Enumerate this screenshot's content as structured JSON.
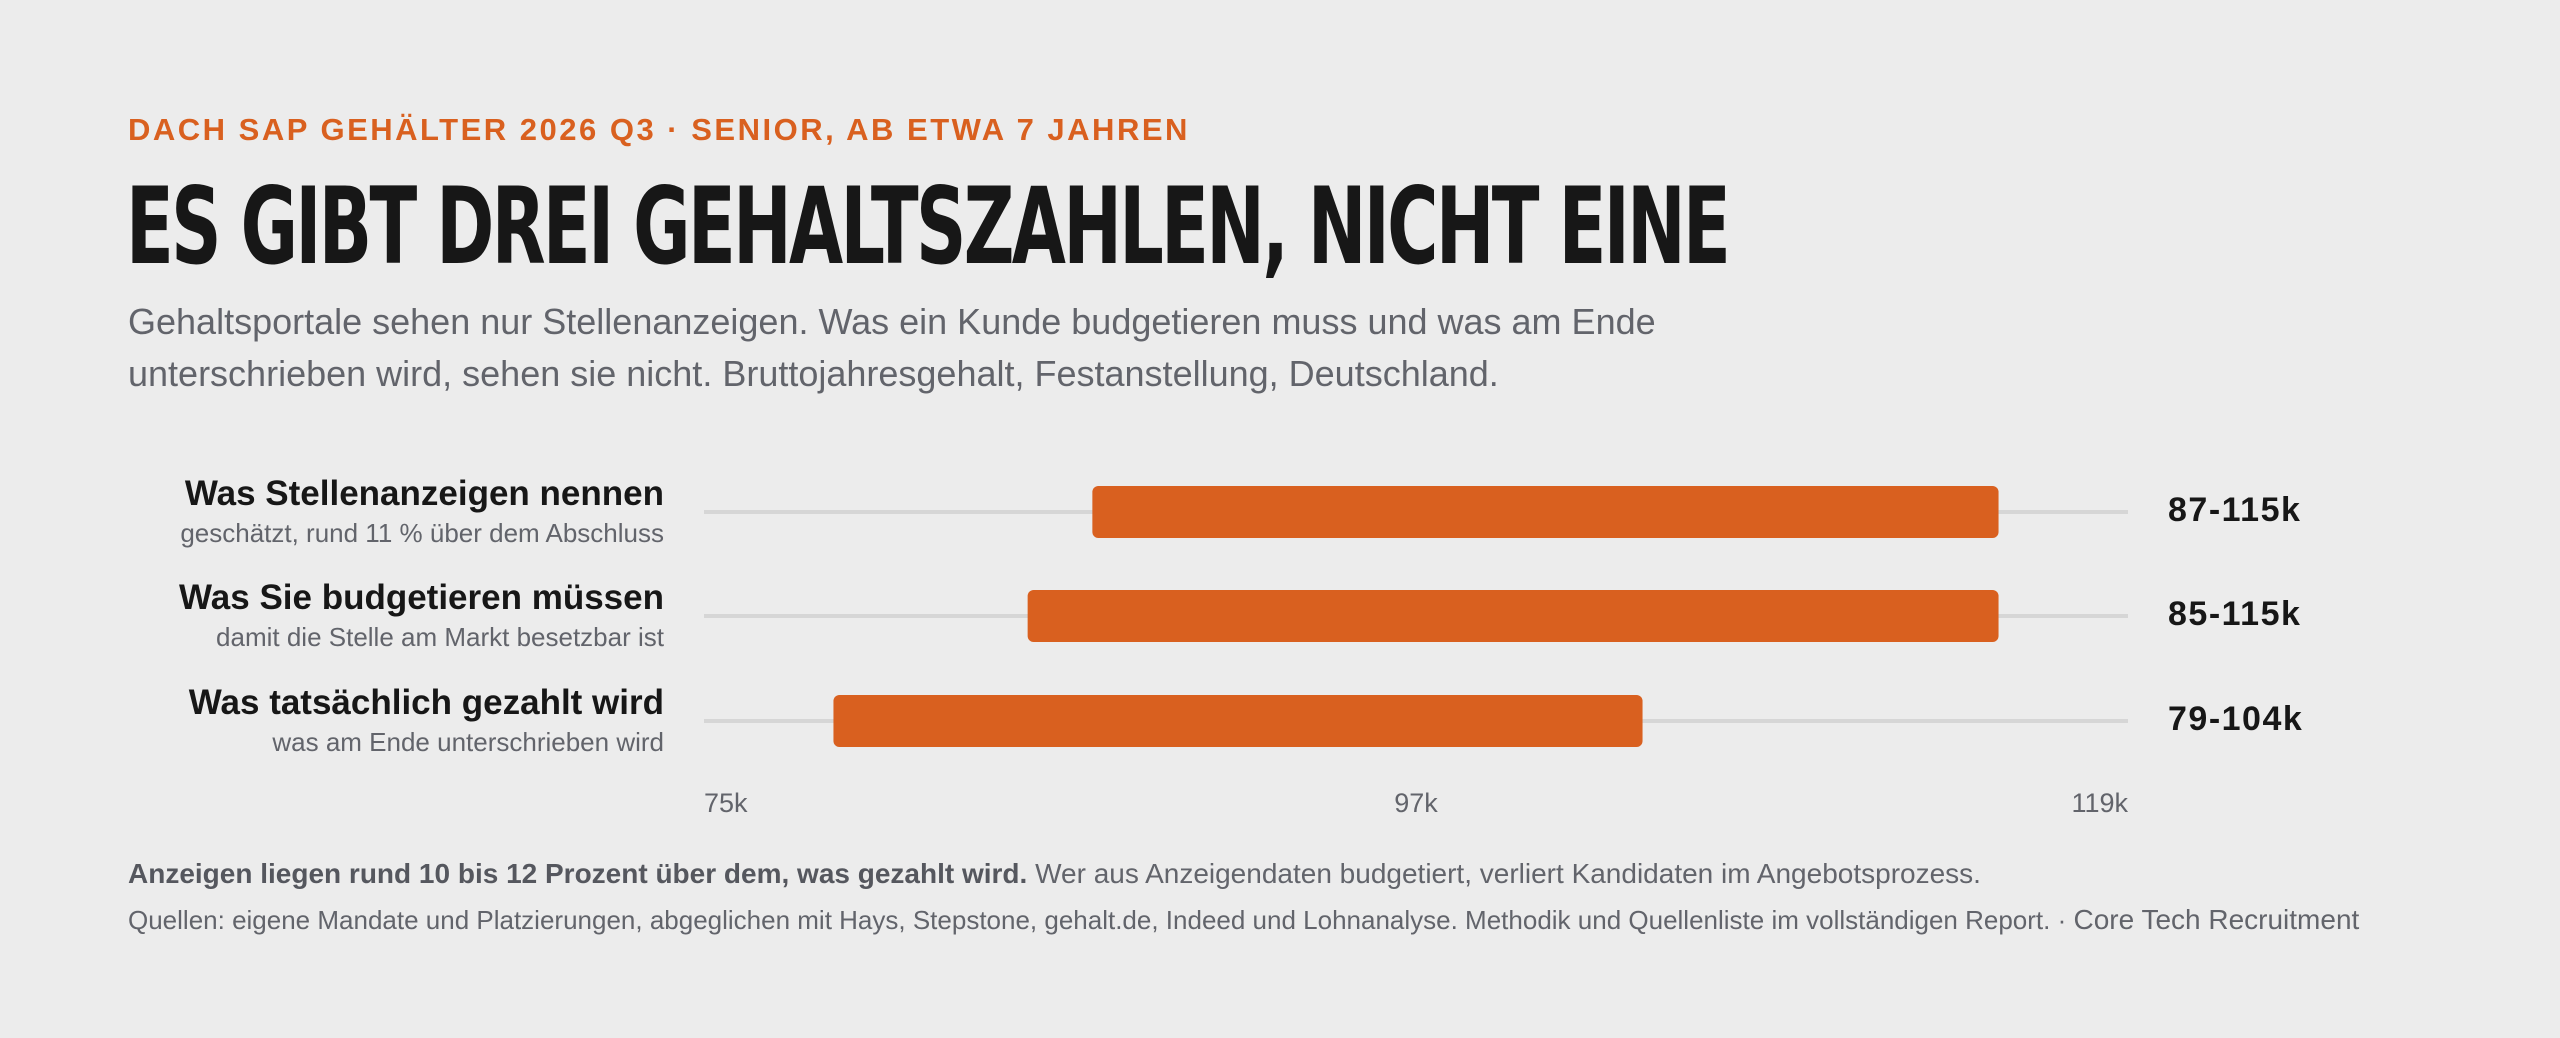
{
  "header": {
    "eyebrow": "DACH SAP GEHÄLTER 2026 Q3 · SENIOR, AB ETWA 7 JAHREN",
    "title": "ES GIBT DREI GEHALTSZAHLEN, NICHT EINE",
    "subtitle": "Gehaltsportale sehen nur Stellenanzeigen. Was ein Kunde budgetieren muss und was am Ende unterschrieben wird, sehen sie nicht. Bruttojahresgehalt, Festanstellung, Deutschland."
  },
  "colors": {
    "accent": "#d9601f",
    "track": "#d6d6d6",
    "background": "#ececec",
    "text": "#171717",
    "muted": "#62646b"
  },
  "chart_data": {
    "type": "range_bar",
    "orientation": "horizontal",
    "xlim": [
      75,
      119
    ],
    "x_ticks": [
      75,
      97,
      119
    ],
    "x_tick_labels": [
      "75k",
      "97k",
      "119k"
    ],
    "unit": "k",
    "grid": false,
    "categories": [
      {
        "label": "Was Stellenanzeigen nennen",
        "sublabel": "geschätzt, rund 11 % über dem Abschluss",
        "low": 87,
        "high": 115,
        "value_label": "87-115k"
      },
      {
        "label": "Was Sie budgetieren müssen",
        "sublabel": "damit die Stelle am Markt besetzbar ist",
        "low": 85,
        "high": 115,
        "value_label": "85-115k"
      },
      {
        "label": "Was tatsächlich gezahlt wird",
        "sublabel": "was am Ende unterschrieben wird",
        "low": 79,
        "high": 104,
        "value_label": "79-104k"
      }
    ]
  },
  "footer": {
    "note_bold": "Anzeigen liegen rund 10 bis 12 Prozent über dem, was gezahlt wird.",
    "note_rest": " Wer aus Anzeigendaten budgetiert, verliert Kandidaten im Angebotsprozess.",
    "sources": "Quellen: eigene Mandate und Platzierungen, abgeglichen mit Hays, Stepstone, gehalt.de, Indeed und Lohnanalyse. Methodik und Quellenliste im vollständigen Report. · ",
    "brand": "Core Tech Recruitment"
  }
}
